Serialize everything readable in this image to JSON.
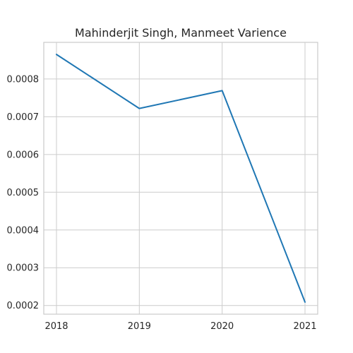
{
  "chart_data": {
    "type": "line",
    "title": "Mahinderjit Singh, Manmeet Varience",
    "xlabel": "",
    "ylabel": "",
    "categories": [
      "2018",
      "2019",
      "2020",
      "2021"
    ],
    "series": [
      {
        "values": [
          0.000865,
          0.000722,
          0.000769,
          0.000209
        ],
        "color": "#1f77b4"
      }
    ],
    "ylim": [
      0.000177,
      0.000897
    ],
    "yticks": [
      "0.0002",
      "0.0003",
      "0.0004",
      "0.0005",
      "0.0006",
      "0.0007",
      "0.0008"
    ],
    "grid": true,
    "legend": "none"
  }
}
